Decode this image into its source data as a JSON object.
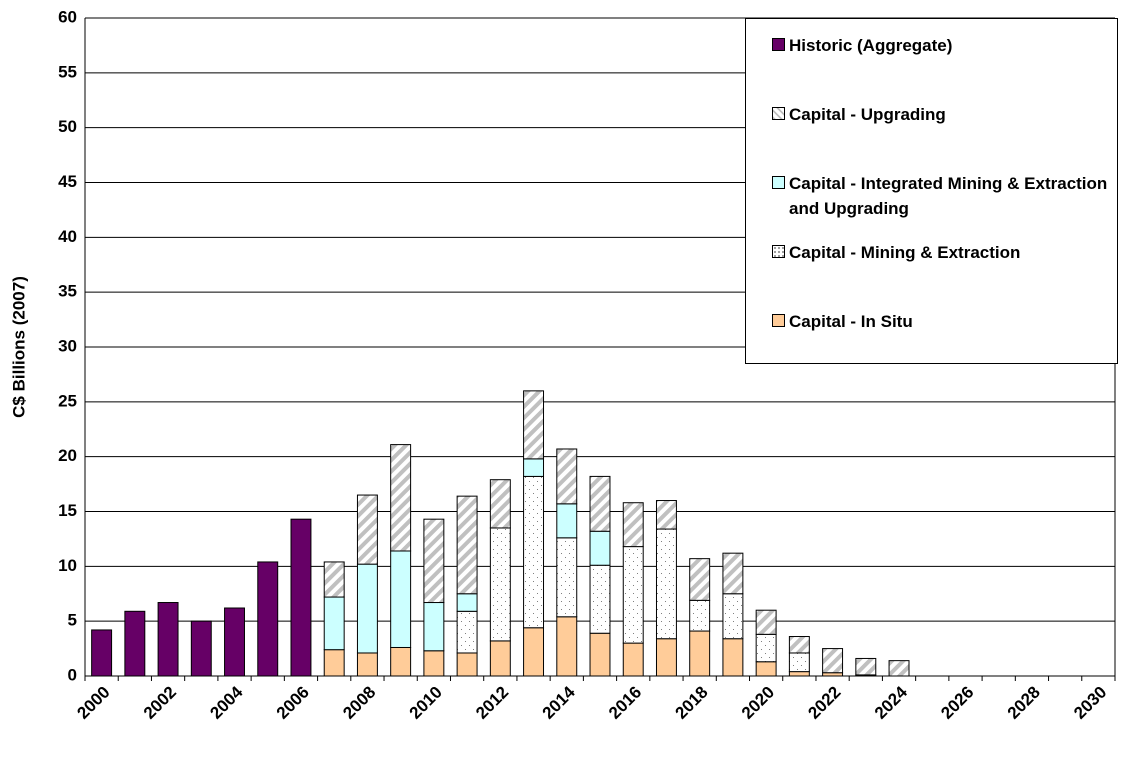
{
  "chart_data": {
    "type": "stacked_bar",
    "ylabel": "C$ Billions (2007)",
    "ylim": [
      0,
      60
    ],
    "yticks": [
      0,
      5,
      10,
      15,
      20,
      25,
      30,
      35,
      40,
      45,
      50,
      55,
      60
    ],
    "grid": true,
    "categories": [
      "2000",
      null,
      "2002",
      null,
      "2004",
      null,
      "2006",
      null,
      "2008",
      null,
      "2010",
      null,
      "2012",
      null,
      "2014",
      null,
      "2016",
      null,
      "2018",
      null,
      "2020",
      null,
      "2022",
      null,
      "2024",
      null,
      "2026",
      null,
      "2028",
      null,
      "2030"
    ],
    "legend": "upper right",
    "series": [
      {
        "name": "Historic (Aggregate)",
        "color": "#660066",
        "values": [
          4.2,
          5.9,
          6.7,
          5.0,
          6.2,
          10.4,
          14.3,
          null,
          null,
          null,
          null,
          null,
          null,
          null,
          null,
          null,
          null,
          null,
          null,
          null,
          null,
          null,
          null,
          null,
          null,
          null,
          null,
          null,
          null,
          null,
          null
        ]
      },
      {
        "name": "Capital - Upgrading",
        "color": "#c0c0c0",
        "pattern": "hatch",
        "values": [
          null,
          null,
          null,
          null,
          null,
          null,
          null,
          3.2,
          6.3,
          9.7,
          7.6,
          8.9,
          4.4,
          6.2,
          5.0,
          5.0,
          4.0,
          2.6,
          3.8,
          3.7,
          2.2,
          1.5,
          2.2,
          1.5,
          1.4,
          null,
          null,
          null,
          null,
          null,
          null
        ]
      },
      {
        "name": "Capital - Integrated Mining & Extraction and Upgrading",
        "color": "#ccffff",
        "values": [
          null,
          null,
          null,
          null,
          null,
          null,
          null,
          4.8,
          8.1,
          8.8,
          4.4,
          1.6,
          null,
          1.6,
          3.1,
          3.1,
          null,
          null,
          null,
          null,
          null,
          null,
          null,
          null,
          null,
          null,
          null,
          null,
          null,
          null,
          null
        ]
      },
      {
        "name": "Capital - Mining & Extraction",
        "color": "#808080",
        "pattern": "dots",
        "values": [
          null,
          null,
          null,
          null,
          null,
          null,
          null,
          null,
          null,
          null,
          null,
          3.8,
          10.3,
          13.8,
          7.2,
          6.2,
          8.8,
          10.0,
          2.8,
          4.1,
          2.5,
          1.7,
          null,
          null,
          null,
          null,
          null,
          null,
          null,
          null,
          null
        ]
      },
      {
        "name": "Capital - In Situ",
        "color": "#ffcc99",
        "values": [
          null,
          null,
          null,
          null,
          null,
          null,
          null,
          2.4,
          2.1,
          2.6,
          2.3,
          2.1,
          3.2,
          4.4,
          5.4,
          3.9,
          3.0,
          3.4,
          4.1,
          3.4,
          1.3,
          0.4,
          0.3,
          0.1,
          null,
          null,
          null,
          null,
          null,
          null,
          null
        ]
      }
    ]
  }
}
